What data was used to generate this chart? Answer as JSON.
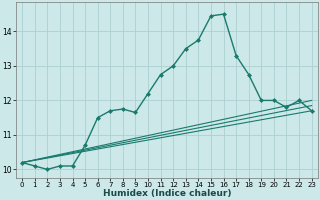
{
  "xlabel": "Humidex (Indice chaleur)",
  "ylabel": "",
  "bg_color": "#cce8e8",
  "grid_color": "#aed0d0",
  "line_color": "#1a7a6e",
  "xlim": [
    -0.5,
    23.5
  ],
  "ylim": [
    9.75,
    14.85
  ],
  "yticks": [
    10,
    11,
    12,
    13,
    14
  ],
  "xticks": [
    0,
    1,
    2,
    3,
    4,
    5,
    6,
    7,
    8,
    9,
    10,
    11,
    12,
    13,
    14,
    15,
    16,
    17,
    18,
    19,
    20,
    21,
    22,
    23
  ],
  "lines": [
    {
      "x": [
        0,
        1,
        2,
        3,
        4,
        5,
        6,
        7,
        8,
        9,
        10,
        11,
        12,
        13,
        14,
        15,
        16,
        17,
        18,
        19,
        20,
        21,
        22,
        23
      ],
      "y": [
        10.2,
        10.1,
        10.0,
        10.1,
        10.1,
        10.7,
        11.5,
        11.7,
        11.75,
        11.65,
        12.2,
        12.75,
        13.0,
        13.5,
        13.75,
        14.45,
        14.5,
        13.3,
        12.75,
        12.0,
        12.0,
        11.8,
        12.0,
        11.7
      ],
      "marker": "D",
      "markersize": 2.0,
      "linewidth": 1.0
    },
    {
      "x": [
        0,
        23
      ],
      "y": [
        10.2,
        12.0
      ],
      "marker": null,
      "linewidth": 0.8
    },
    {
      "x": [
        0,
        23
      ],
      "y": [
        10.2,
        11.7
      ],
      "marker": null,
      "linewidth": 0.8
    },
    {
      "x": [
        0,
        23
      ],
      "y": [
        10.2,
        11.85
      ],
      "marker": null,
      "linewidth": 0.8
    }
  ]
}
